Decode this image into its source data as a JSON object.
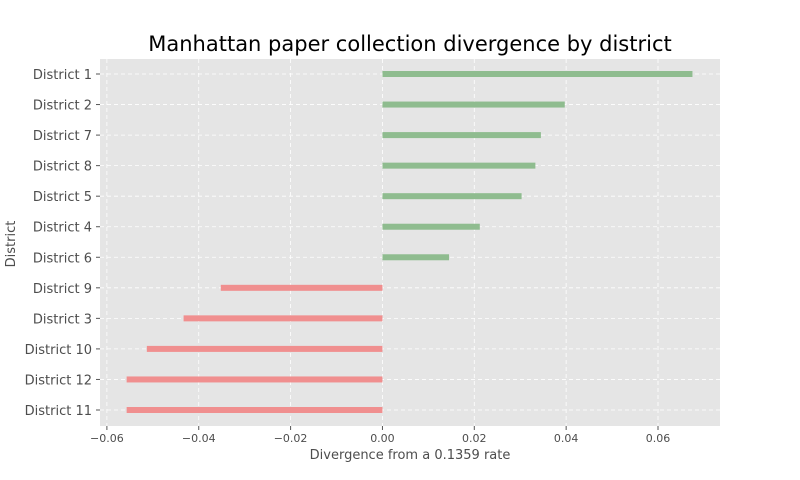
{
  "chart_data": {
    "type": "bar",
    "orientation": "horizontal",
    "title": "Manhattan paper collection divergence by district",
    "xlabel": "Divergence from a 0.1359 rate",
    "ylabel": "District",
    "xlim": [
      -0.0615,
      0.0735
    ],
    "xticks": [
      -0.06,
      -0.04,
      -0.02,
      0.0,
      0.02,
      0.04,
      0.06
    ],
    "xtick_labels": [
      "−0.06",
      "−0.04",
      "−0.02",
      "0.00",
      "0.02",
      "0.04",
      "0.06"
    ],
    "grid": true,
    "categories": [
      "District 1",
      "District 2",
      "District 7",
      "District 8",
      "District 5",
      "District 4",
      "District 6",
      "District 9",
      "District 3",
      "District 10",
      "District 12",
      "District 11"
    ],
    "values": [
      0.0675,
      0.0397,
      0.0345,
      0.0333,
      0.0303,
      0.0212,
      0.0145,
      -0.0352,
      -0.0433,
      -0.0513,
      -0.0557,
      -0.0557
    ],
    "colors": {
      "positive": "#8fbc8f",
      "negative": "#f08f8f",
      "background": "#e5e5e5",
      "grid": "#ffffff"
    }
  }
}
